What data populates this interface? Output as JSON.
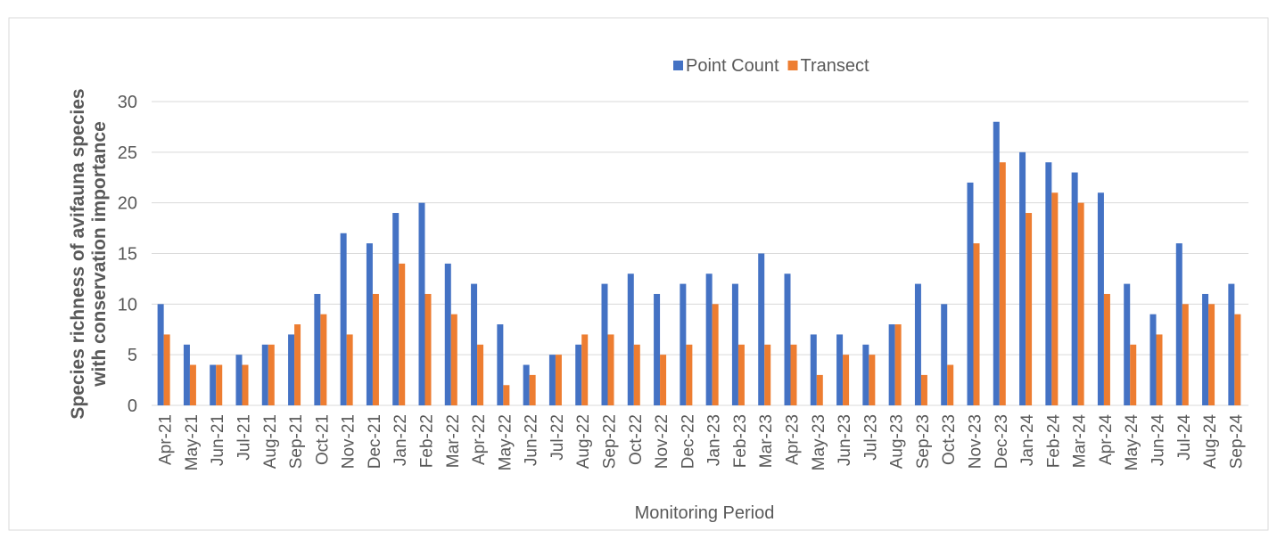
{
  "chart_data": {
    "type": "bar",
    "y_label": "Species richness of avifauna species with conservation importance",
    "x_label": "Monitoring Period",
    "categories": [
      "Apr-21",
      "May-21",
      "Jun-21",
      "Jul-21",
      "Aug-21",
      "Sep-21",
      "Oct-21",
      "Nov-21",
      "Dec-21",
      "Jan-22",
      "Feb-22",
      "Mar-22",
      "Apr-22",
      "May-22",
      "Jun-22",
      "Jul-22",
      "Aug-22",
      "Sep-22",
      "Oct-22",
      "Nov-22",
      "Dec-22",
      "Jan-23",
      "Feb-23",
      "Mar-23",
      "Apr-23",
      "May-23",
      "Jun-23",
      "Jul-23",
      "Aug-23",
      "Sep-23",
      "Oct-23",
      "Nov-23",
      "Dec-23",
      "Jan-24",
      "Feb-24",
      "Mar-24",
      "Apr-24",
      "May-24",
      "Jun-24",
      "Jul-24",
      "Aug-24",
      "Sep-24"
    ],
    "series": [
      {
        "name": "Point Count",
        "color": "#4472c4",
        "values": [
          10,
          6,
          4,
          5,
          6,
          7,
          11,
          17,
          16,
          19,
          20,
          14,
          12,
          8,
          4,
          5,
          6,
          12,
          13,
          11,
          12,
          13,
          12,
          15,
          13,
          7,
          7,
          6,
          8,
          12,
          10,
          22,
          28,
          25,
          24,
          23,
          21,
          12,
          9,
          16,
          11,
          12
        ]
      },
      {
        "name": "Transect",
        "color": "#ed7d31",
        "values": [
          7,
          4,
          4,
          4,
          6,
          8,
          9,
          7,
          11,
          14,
          11,
          9,
          6,
          2,
          3,
          5,
          7,
          7,
          6,
          5,
          6,
          10,
          6,
          6,
          6,
          3,
          5,
          5,
          8,
          3,
          4,
          16,
          24,
          19,
          21,
          20,
          11,
          6,
          7,
          10,
          10,
          9
        ]
      }
    ],
    "ylim": [
      0,
      30
    ],
    "yticks": [
      0,
      5,
      10,
      15,
      20,
      25,
      30
    ],
    "grid": true,
    "legend": "top"
  }
}
